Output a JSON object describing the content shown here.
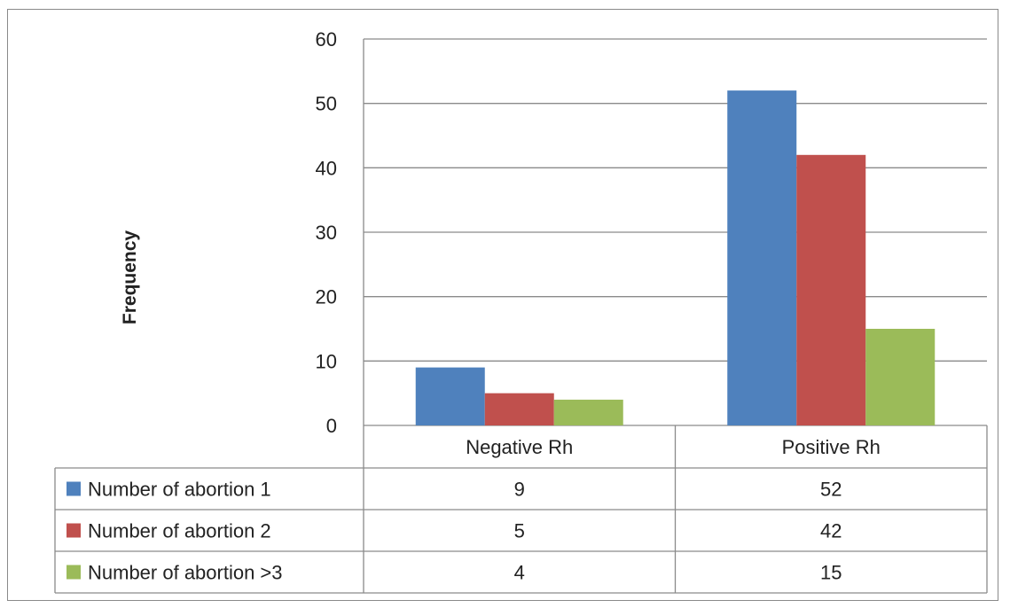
{
  "chart_data": {
    "type": "bar",
    "categories": [
      "Negative Rh",
      "Positive Rh"
    ],
    "series": [
      {
        "name": "Number of abortion  1",
        "values": [
          9,
          52
        ],
        "color": "#4F81BD"
      },
      {
        "name": "Number of abortion  2",
        "values": [
          5,
          42
        ],
        "color": "#C0504D"
      },
      {
        "name": "Number of abortion  >3",
        "values": [
          4,
          15
        ],
        "color": "#9BBB59"
      }
    ],
    "ylabel": "Frequency",
    "xlabel": "",
    "title": "",
    "ylim": [
      0,
      60
    ],
    "yticks": [
      0,
      10,
      20,
      30,
      40,
      50,
      60
    ],
    "grid": true,
    "legend": "data-table-left",
    "data_table": true
  }
}
